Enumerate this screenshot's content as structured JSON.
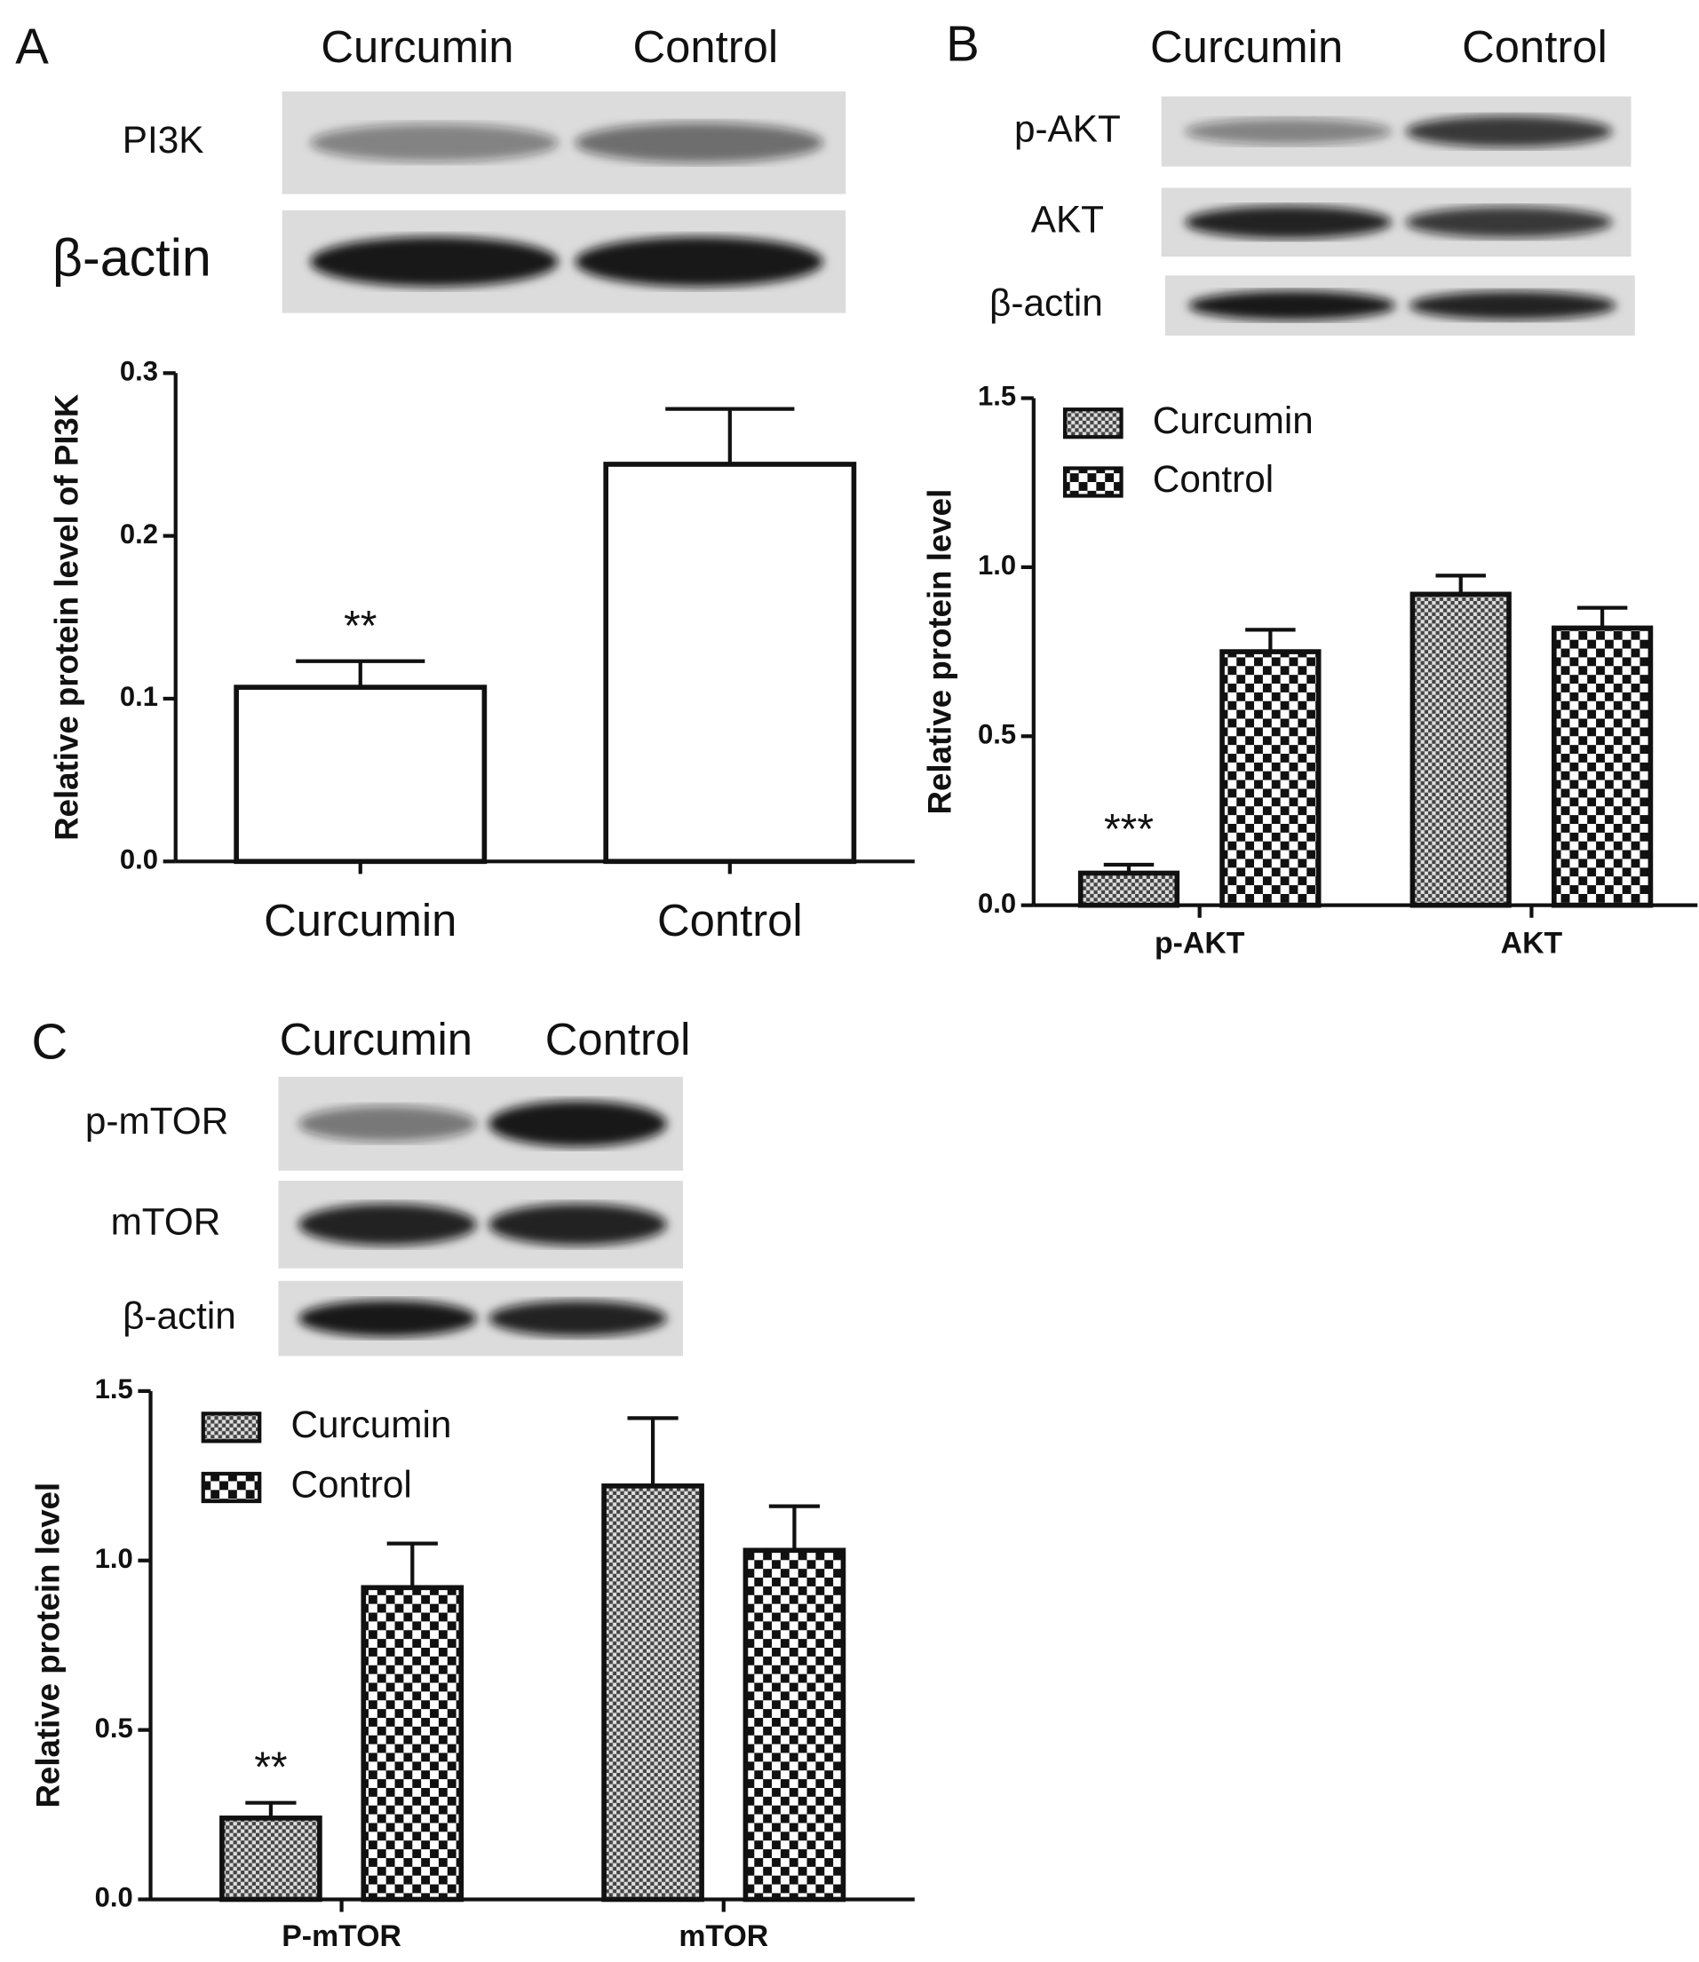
{
  "chart_data": [
    {
      "type": "bar",
      "panel": "A",
      "blot": {
        "lanes": [
          "Curcumin",
          "Control"
        ],
        "rows": [
          "PI3K",
          "β-actin"
        ]
      },
      "ylabel": "Relative protein level of PI3K",
      "categories": [
        "Curcumin",
        "Control"
      ],
      "series": [
        {
          "values": [
            0.107,
            0.244
          ],
          "errors": [
            0.016,
            0.034
          ],
          "markers": [
            "**",
            null
          ],
          "color": "#ffffff"
        }
      ],
      "ylim": [
        0,
        0.3
      ],
      "yticks": [
        {
          "value": 0,
          "label": "0.0"
        },
        0.1,
        0.2,
        0.3
      ]
    },
    {
      "type": "grouped-bar",
      "panel": "B",
      "blot": {
        "lanes": [
          "Curcumin",
          "Control"
        ],
        "rows": [
          "p-AKT",
          "AKT",
          "β-actin"
        ]
      },
      "ylabel": "Relative protein level",
      "categories": [
        "p-AKT",
        "AKT"
      ],
      "series": [
        {
          "name": "Curcumin",
          "pattern": "fine-check",
          "values": [
            0.095,
            0.92
          ],
          "errors": [
            0.025,
            0.055
          ],
          "markers": [
            "***",
            null
          ]
        },
        {
          "name": "Control",
          "pattern": "coarse-check",
          "values": [
            0.75,
            0.82
          ],
          "errors": [
            0.065,
            0.06
          ],
          "markers": [
            null,
            null
          ]
        }
      ],
      "ylim": [
        0,
        1.5
      ],
      "yticks": [
        {
          "value": 0,
          "label": "0.0"
        },
        0.5,
        {
          "value": 1,
          "label": "1.0"
        },
        1.5
      ],
      "legend": "upper left"
    },
    {
      "type": "grouped-bar",
      "panel": "C",
      "blot": {
        "lanes": [
          "Curcumin",
          "Control"
        ],
        "rows": [
          "p-mTOR",
          "mTOR",
          "β-actin"
        ]
      },
      "ylabel": "Relative protein level",
      "categories": [
        "P-mTOR",
        "mTOR"
      ],
      "series": [
        {
          "name": "Curcumin",
          "pattern": "fine-check",
          "values": [
            0.24,
            1.22
          ],
          "errors": [
            0.045,
            0.2
          ],
          "markers": [
            "**",
            null
          ]
        },
        {
          "name": "Control",
          "pattern": "coarse-check",
          "values": [
            0.92,
            1.03
          ],
          "errors": [
            0.13,
            0.13
          ],
          "markers": [
            null,
            null
          ]
        }
      ],
      "ylim": [
        0,
        1.5
      ],
      "yticks": [
        {
          "value": 0,
          "label": "0.0"
        },
        0.5,
        {
          "value": 1,
          "label": "1.0"
        },
        1.5
      ],
      "legend": "upper left"
    }
  ]
}
